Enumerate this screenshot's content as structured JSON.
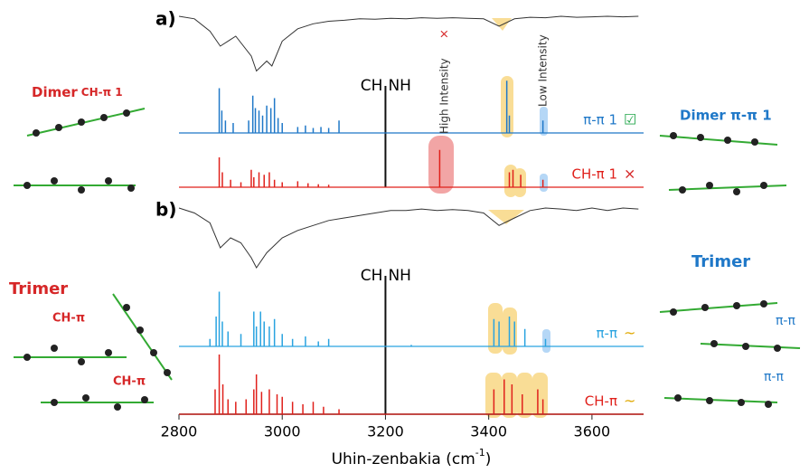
{
  "chart_data": {
    "type": "stick",
    "xlabel": {
      "text": "Uhin-zenbakia (cm",
      "sup": "-1",
      "close": ")"
    },
    "xlim": [
      2800,
      3700
    ],
    "xticks": [
      2800,
      3000,
      3200,
      3400,
      3600
    ],
    "divider": {
      "x": 3200,
      "left": "CH",
      "right": "NH"
    },
    "panels": [
      {
        "label": "a)",
        "experimental": {
          "color": "#333333",
          "x": [
            2800,
            2830,
            2860,
            2880,
            2910,
            2940,
            2950,
            2970,
            2980,
            3000,
            3030,
            3060,
            3090,
            3120,
            3150,
            3180,
            3210,
            3240,
            3270,
            3300,
            3330,
            3360,
            3390,
            3420,
            3450,
            3480,
            3510,
            3540,
            3570,
            3600,
            3630,
            3660,
            3690
          ],
          "values": [
            0,
            0.05,
            0.3,
            0.6,
            0.4,
            0.8,
            1.1,
            0.9,
            1.0,
            0.5,
            0.25,
            0.15,
            0.1,
            0.08,
            0.05,
            0.06,
            0.04,
            0.05,
            0.03,
            0.04,
            0.03,
            0.04,
            0.05,
            0.2,
            0.05,
            0.02,
            0.03,
            0,
            0.02,
            0.01,
            0,
            0.01,
            0
          ]
        },
        "series": [
          {
            "name": "π-π 1",
            "status": "☑",
            "status_color": "#22a64a",
            "color": "#1f78c8",
            "x": [
              2878,
              2883,
              2890,
              2905,
              2935,
              2943,
              2948,
              2955,
              2962,
              2970,
              2978,
              2985,
              2992,
              3000,
              3030,
              3045,
              3060,
              3075,
              3090,
              3110,
              3435,
              3440,
              3505
            ],
            "values": [
              0.9,
              0.45,
              0.25,
              0.2,
              0.25,
              0.75,
              0.5,
              0.45,
              0.35,
              0.55,
              0.5,
              0.7,
              0.3,
              0.2,
              0.12,
              0.15,
              0.1,
              0.12,
              0.1,
              0.25,
              1.05,
              0.35,
              0.25
            ]
          },
          {
            "name": "CH-π 1",
            "status": "×",
            "status_color": "#d62728",
            "color": "#e0201b",
            "x": [
              2878,
              2884,
              2900,
              2920,
              2940,
              2945,
              2955,
              2965,
              2975,
              2985,
              3000,
              3030,
              3050,
              3070,
              3090,
              3305,
              3440,
              3447,
              3462,
              3505
            ],
            "values": [
              0.6,
              0.3,
              0.15,
              0.1,
              0.35,
              0.2,
              0.3,
              0.25,
              0.3,
              0.15,
              0.1,
              0.12,
              0.08,
              0.06,
              0.05,
              0.75,
              0.3,
              0.35,
              0.25,
              0.15
            ]
          }
        ],
        "notes": {
          "high": "High Intensity",
          "high_mark": "×",
          "low": "Low Intensity"
        },
        "structures": {
          "left_title": "Dimer",
          "left_tag": "CH-π 1",
          "right_title": "Dimer π-π 1"
        }
      },
      {
        "label": "b)",
        "experimental": {
          "color": "#333333",
          "x": [
            2800,
            2830,
            2860,
            2880,
            2900,
            2920,
            2940,
            2950,
            2970,
            3000,
            3030,
            3060,
            3090,
            3120,
            3150,
            3180,
            3210,
            3240,
            3270,
            3300,
            3330,
            3360,
            3390,
            3420,
            3450,
            3480,
            3510,
            3540,
            3570,
            3600,
            3630,
            3660,
            3690
          ],
          "values": [
            0,
            0.1,
            0.3,
            0.8,
            0.6,
            0.7,
            1.0,
            1.2,
            0.9,
            0.6,
            0.45,
            0.35,
            0.25,
            0.2,
            0.15,
            0.1,
            0.05,
            0.05,
            0.02,
            0.05,
            0.03,
            0.05,
            0.1,
            0.35,
            0.2,
            0.05,
            0,
            0.02,
            0.05,
            0,
            0.05,
            0,
            0.02
          ]
        },
        "series": [
          {
            "name": "π-π",
            "status": "~",
            "status_color": "#e0a800",
            "color": "#29a3e0",
            "x": [
              2860,
              2872,
              2878,
              2884,
              2895,
              2920,
              2945,
              2950,
              2958,
              2965,
              2975,
              2985,
              3000,
              3020,
              3045,
              3070,
              3090,
              3250,
              3410,
              3420,
              3440,
              3450,
              3470,
              3510
            ],
            "values": [
              0.15,
              0.6,
              1.1,
              0.5,
              0.3,
              0.25,
              0.7,
              0.4,
              0.7,
              0.5,
              0.4,
              0.55,
              0.25,
              0.15,
              0.2,
              0.1,
              0.15,
              0.03,
              0.55,
              0.5,
              0.6,
              0.5,
              0.35,
              0.15
            ]
          },
          {
            "name": "CH-π",
            "status": "~",
            "status_color": "#e0a800",
            "color": "#e0201b",
            "x": [
              2870,
              2878,
              2885,
              2895,
              2910,
              2930,
              2945,
              2950,
              2960,
              2975,
              2990,
              3000,
              3020,
              3040,
              3060,
              3080,
              3110,
              3410,
              3430,
              3445,
              3465,
              3495,
              3505
            ],
            "values": [
              0.5,
              1.2,
              0.6,
              0.3,
              0.25,
              0.3,
              0.5,
              0.8,
              0.45,
              0.5,
              0.4,
              0.35,
              0.25,
              0.2,
              0.25,
              0.15,
              0.1,
              0.5,
              0.7,
              0.6,
              0.4,
              0.5,
              0.3
            ]
          }
        ],
        "structures": {
          "left_title": "Trimer",
          "left_tags": [
            "CH-π",
            "CH-π"
          ],
          "right_title": "Trimer",
          "right_tags": [
            "π-π",
            "π-π"
          ]
        }
      }
    ]
  }
}
